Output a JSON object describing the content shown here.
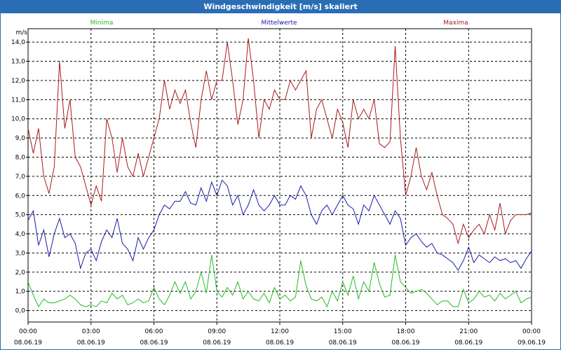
{
  "window": {
    "title": "Windgeschwindigkeit [m/s] skaliert"
  },
  "legend": {
    "min": "Minima",
    "mean": "Mittelwerte",
    "max": "Maxima"
  },
  "axis": {
    "unit": "m/s"
  },
  "colors": {
    "min": "#22bb22",
    "mean": "#1a1aaa",
    "max": "#aa1a1a",
    "grid": "#000000",
    "title_bar": "#2a6db5"
  },
  "chart_data": {
    "type": "line",
    "title": "Windgeschwindigkeit [m/s] skaliert",
    "ylabel": "m/s",
    "ylim": [
      -0.6,
      14.7
    ],
    "yticks": [
      "0,0",
      "1,0",
      "2,0",
      "3,0",
      "4,0",
      "5,0",
      "6,0",
      "7,0",
      "8,0",
      "9,0",
      "10,0",
      "11,0",
      "12,0",
      "13,0",
      "14,0"
    ],
    "xlim": [
      0,
      24
    ],
    "xticks": [
      {
        "time": "00:00",
        "date": "08.06.19"
      },
      {
        "time": "03:00",
        "date": "08.06.19"
      },
      {
        "time": "06:00",
        "date": "08.06.19"
      },
      {
        "time": "09:00",
        "date": "08.06.19"
      },
      {
        "time": "12:00",
        "date": "08.06.19"
      },
      {
        "time": "15:00",
        "date": "08.06.19"
      },
      {
        "time": "18:00",
        "date": "08.06.19"
      },
      {
        "time": "21:00",
        "date": "08.06.19"
      },
      {
        "time": "00:00",
        "date": "09.06.19"
      }
    ],
    "grid": true,
    "series": [
      {
        "name": "Maxima",
        "key": "max",
        "x": [
          0,
          0.25,
          0.5,
          0.75,
          1,
          1.25,
          1.5,
          1.75,
          2,
          2.25,
          2.5,
          2.75,
          3,
          3.25,
          3.5,
          3.75,
          4,
          4.25,
          4.5,
          4.75,
          5,
          5.25,
          5.5,
          5.75,
          6,
          6.25,
          6.5,
          6.75,
          7,
          7.25,
          7.5,
          7.75,
          8,
          8.25,
          8.5,
          8.75,
          9,
          9.25,
          9.5,
          9.75,
          10,
          10.25,
          10.5,
          10.75,
          11,
          11.25,
          11.5,
          11.75,
          12,
          12.25,
          12.5,
          12.75,
          13,
          13.25,
          13.5,
          13.75,
          14,
          14.25,
          14.5,
          14.75,
          15,
          15.25,
          15.5,
          15.75,
          16,
          16.25,
          16.5,
          16.75,
          17,
          17.25,
          17.5,
          17.75,
          18,
          18.25,
          18.5,
          18.75,
          19,
          19.25,
          19.5,
          19.75,
          20,
          20.25,
          20.5,
          20.75,
          21,
          21.25,
          21.5,
          21.75,
          22,
          22.25,
          22.5,
          22.75,
          23,
          23.25,
          23.5,
          23.75,
          24
        ],
        "values": [
          9.5,
          8.2,
          9.5,
          7.0,
          6.1,
          7.5,
          13.0,
          9.5,
          11.0,
          8.0,
          7.5,
          6.5,
          5.5,
          6.5,
          5.7,
          10.0,
          9.0,
          7.2,
          9.0,
          7.5,
          7.0,
          8.2,
          7.0,
          8.0,
          9.0,
          10.0,
          12.0,
          10.5,
          11.5,
          10.8,
          11.5,
          9.8,
          8.5,
          11.0,
          12.5,
          11.0,
          12.0,
          12.0,
          14.0,
          12.0,
          9.7,
          11.0,
          14.2,
          12.0,
          9.0,
          11.0,
          10.5,
          11.5,
          11.0,
          11.0,
          12.0,
          11.5,
          12.0,
          12.5,
          9.0,
          10.5,
          11.0,
          10.0,
          9.0,
          10.5,
          9.8,
          8.5,
          11.0,
          10.0,
          10.5,
          10.0,
          11.0,
          8.7,
          8.5,
          8.8,
          13.8,
          9.0,
          6.0,
          7.0,
          8.5,
          7.0,
          6.3,
          7.2,
          6.0,
          5.0,
          4.8,
          4.5,
          3.5,
          4.5,
          3.8,
          4.2,
          4.5,
          4.0,
          5.0,
          4.2,
          5.6,
          4.0,
          4.7,
          5.0,
          5.0,
          5.0,
          5.1
        ]
      },
      {
        "name": "Mittelwerte",
        "key": "mean",
        "x": [
          0,
          0.25,
          0.5,
          0.75,
          1,
          1.25,
          1.5,
          1.75,
          2,
          2.25,
          2.5,
          2.75,
          3,
          3.25,
          3.5,
          3.75,
          4,
          4.25,
          4.5,
          4.75,
          5,
          5.25,
          5.5,
          5.75,
          6,
          6.25,
          6.5,
          6.75,
          7,
          7.25,
          7.5,
          7.75,
          8,
          8.25,
          8.5,
          8.75,
          9,
          9.25,
          9.5,
          9.75,
          10,
          10.25,
          10.5,
          10.75,
          11,
          11.25,
          11.5,
          11.75,
          12,
          12.25,
          12.5,
          12.75,
          13,
          13.25,
          13.5,
          13.75,
          14,
          14.25,
          14.5,
          14.75,
          15,
          15.25,
          15.5,
          15.75,
          16,
          16.25,
          16.5,
          16.75,
          17,
          17.25,
          17.5,
          17.75,
          18,
          18.25,
          18.5,
          18.75,
          19,
          19.25,
          19.5,
          19.75,
          20,
          20.25,
          20.5,
          20.75,
          21,
          21.25,
          21.5,
          21.75,
          22,
          22.25,
          22.5,
          22.75,
          23,
          23.25,
          23.5,
          23.75,
          24
        ],
        "values": [
          4.7,
          5.2,
          3.4,
          4.2,
          2.8,
          4.0,
          4.8,
          3.8,
          4.0,
          3.5,
          2.2,
          3.0,
          3.2,
          2.6,
          3.6,
          4.2,
          3.8,
          4.8,
          3.5,
          3.2,
          2.6,
          3.8,
          3.2,
          3.8,
          4.2,
          5.0,
          5.5,
          5.3,
          5.7,
          5.7,
          6.2,
          5.6,
          5.5,
          6.4,
          5.7,
          6.7,
          6.0,
          6.8,
          6.5,
          5.5,
          6.0,
          5.0,
          5.5,
          6.3,
          5.5,
          5.2,
          5.5,
          6.0,
          5.5,
          5.5,
          6.0,
          5.8,
          6.5,
          6.0,
          5.0,
          4.5,
          5.2,
          5.5,
          5.0,
          5.5,
          6.0,
          5.5,
          5.3,
          4.5,
          5.5,
          5.2,
          6.0,
          5.5,
          5.0,
          4.5,
          5.2,
          4.8,
          3.4,
          3.8,
          4.0,
          3.6,
          3.3,
          3.5,
          3.0,
          2.9,
          2.7,
          2.5,
          2.1,
          2.6,
          3.3,
          2.5,
          2.9,
          2.7,
          2.5,
          2.8,
          2.6,
          2.7,
          2.5,
          2.6,
          2.2,
          2.7,
          3.1
        ]
      },
      {
        "name": "Minima",
        "key": "min",
        "x": [
          0,
          0.25,
          0.5,
          0.75,
          1,
          1.25,
          1.5,
          1.75,
          2,
          2.25,
          2.5,
          2.75,
          3,
          3.25,
          3.5,
          3.75,
          4,
          4.25,
          4.5,
          4.75,
          5,
          5.25,
          5.5,
          5.75,
          6,
          6.25,
          6.5,
          6.75,
          7,
          7.25,
          7.5,
          7.75,
          8,
          8.25,
          8.5,
          8.75,
          9,
          9.25,
          9.5,
          9.75,
          10,
          10.25,
          10.5,
          10.75,
          11,
          11.25,
          11.5,
          11.75,
          12,
          12.25,
          12.5,
          12.75,
          13,
          13.25,
          13.5,
          13.75,
          14,
          14.25,
          14.5,
          14.75,
          15,
          15.25,
          15.5,
          15.75,
          16,
          16.25,
          16.5,
          16.75,
          17,
          17.25,
          17.5,
          17.75,
          18,
          18.25,
          18.5,
          18.75,
          19,
          19.25,
          19.5,
          19.75,
          20,
          20.25,
          20.5,
          20.75,
          21,
          21.25,
          21.5,
          21.75,
          22,
          22.25,
          22.5,
          22.75,
          23,
          23.25,
          23.5,
          23.75,
          24
        ],
        "values": [
          1.5,
          0.8,
          0.2,
          0.6,
          0.4,
          0.4,
          0.5,
          0.6,
          0.8,
          0.6,
          0.3,
          0.2,
          0.3,
          0.2,
          0.5,
          0.4,
          0.9,
          0.6,
          0.8,
          0.3,
          0.4,
          0.6,
          0.4,
          0.5,
          1.2,
          0.6,
          0.3,
          0.8,
          1.5,
          0.9,
          1.5,
          0.6,
          1.0,
          2.0,
          0.9,
          2.9,
          1.0,
          0.7,
          1.2,
          0.8,
          1.5,
          0.6,
          1.0,
          0.6,
          0.5,
          0.9,
          0.4,
          1.2,
          0.6,
          0.8,
          0.5,
          0.7,
          2.6,
          1.3,
          0.6,
          0.5,
          0.7,
          0.2,
          1.0,
          0.5,
          1.5,
          0.8,
          1.8,
          0.6,
          1.5,
          1.0,
          2.5,
          1.4,
          0.7,
          0.8,
          2.9,
          1.5,
          1.2,
          0.9,
          1.0,
          1.1,
          0.9,
          0.6,
          0.3,
          0.5,
          0.5,
          0.2,
          0.2,
          1.1,
          0.4,
          0.6,
          1.0,
          0.7,
          0.8,
          0.5,
          0.9,
          0.6,
          0.8,
          1.0,
          0.4,
          0.6,
          0.7
        ]
      }
    ]
  }
}
